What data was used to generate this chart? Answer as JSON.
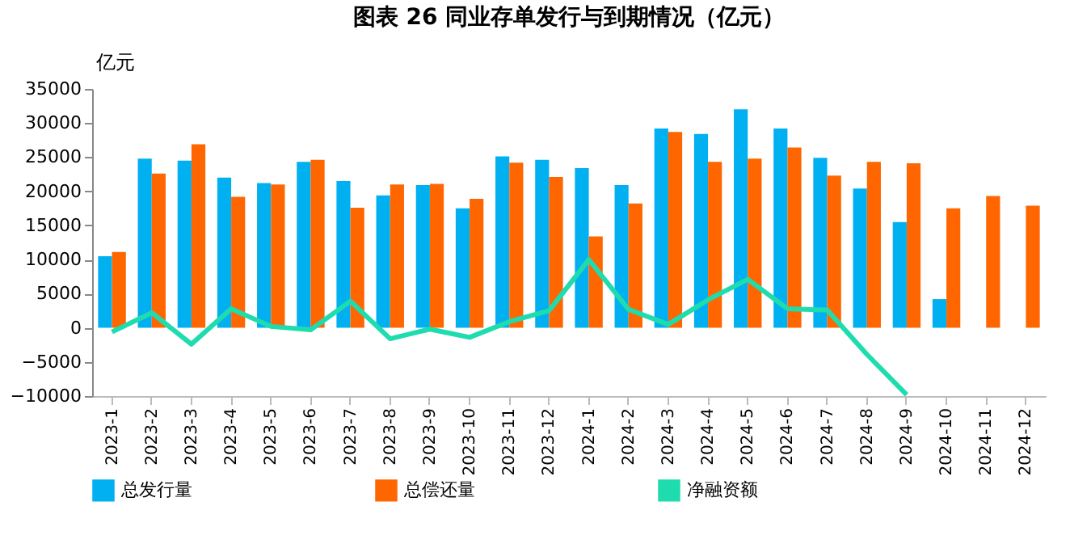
{
  "chart_data": {
    "type": "bar",
    "title": "图表 26 同业存单发行与到期情况（亿元）",
    "ylabel": "亿元",
    "categories": [
      "2023-1",
      "2023-2",
      "2023-3",
      "2023-4",
      "2023-5",
      "2023-6",
      "2023-7",
      "2023-8",
      "2023-9",
      "2023-10",
      "2023-11",
      "2023-12",
      "2024-1",
      "2024-2",
      "2024-3",
      "2024-4",
      "2024-5",
      "2024-6",
      "2024-7",
      "2024-8",
      "2024-9",
      "2024-10",
      "2024-11",
      "2024-12"
    ],
    "series": [
      {
        "name": "总发行量",
        "color": "#00b0f0",
        "values": [
          10500,
          24800,
          24500,
          22000,
          21200,
          24300,
          21500,
          19400,
          20900,
          17500,
          25100,
          24600,
          23400,
          20900,
          29200,
          28400,
          32000,
          29200,
          24900,
          20400,
          15500,
          4200,
          null,
          null
        ]
      },
      {
        "name": "总偿还量",
        "color": "#ff6600",
        "values": [
          11100,
          22600,
          26900,
          19200,
          21000,
          24600,
          17600,
          21000,
          21100,
          18900,
          24200,
          22100,
          13400,
          18200,
          28700,
          24300,
          24800,
          26400,
          22300,
          24300,
          24100,
          17500,
          19300,
          17900
        ]
      },
      {
        "name": "净融资额",
        "color": "#1fdcae",
        "type": "line",
        "values": [
          -600,
          2200,
          -2400,
          2800,
          200,
          -300,
          3900,
          -1600,
          -200,
          -1400,
          900,
          2500,
          10000,
          2700,
          500,
          4100,
          7100,
          2800,
          2600,
          -3900,
          -9800,
          null,
          null,
          null
        ]
      }
    ],
    "ylim": [
      -10000,
      35000
    ],
    "yticks": [
      -10000,
      -5000,
      0,
      5000,
      10000,
      15000,
      20000,
      25000,
      30000,
      35000
    ],
    "grid": false,
    "legend": "bottom",
    "line_style": "solid"
  }
}
